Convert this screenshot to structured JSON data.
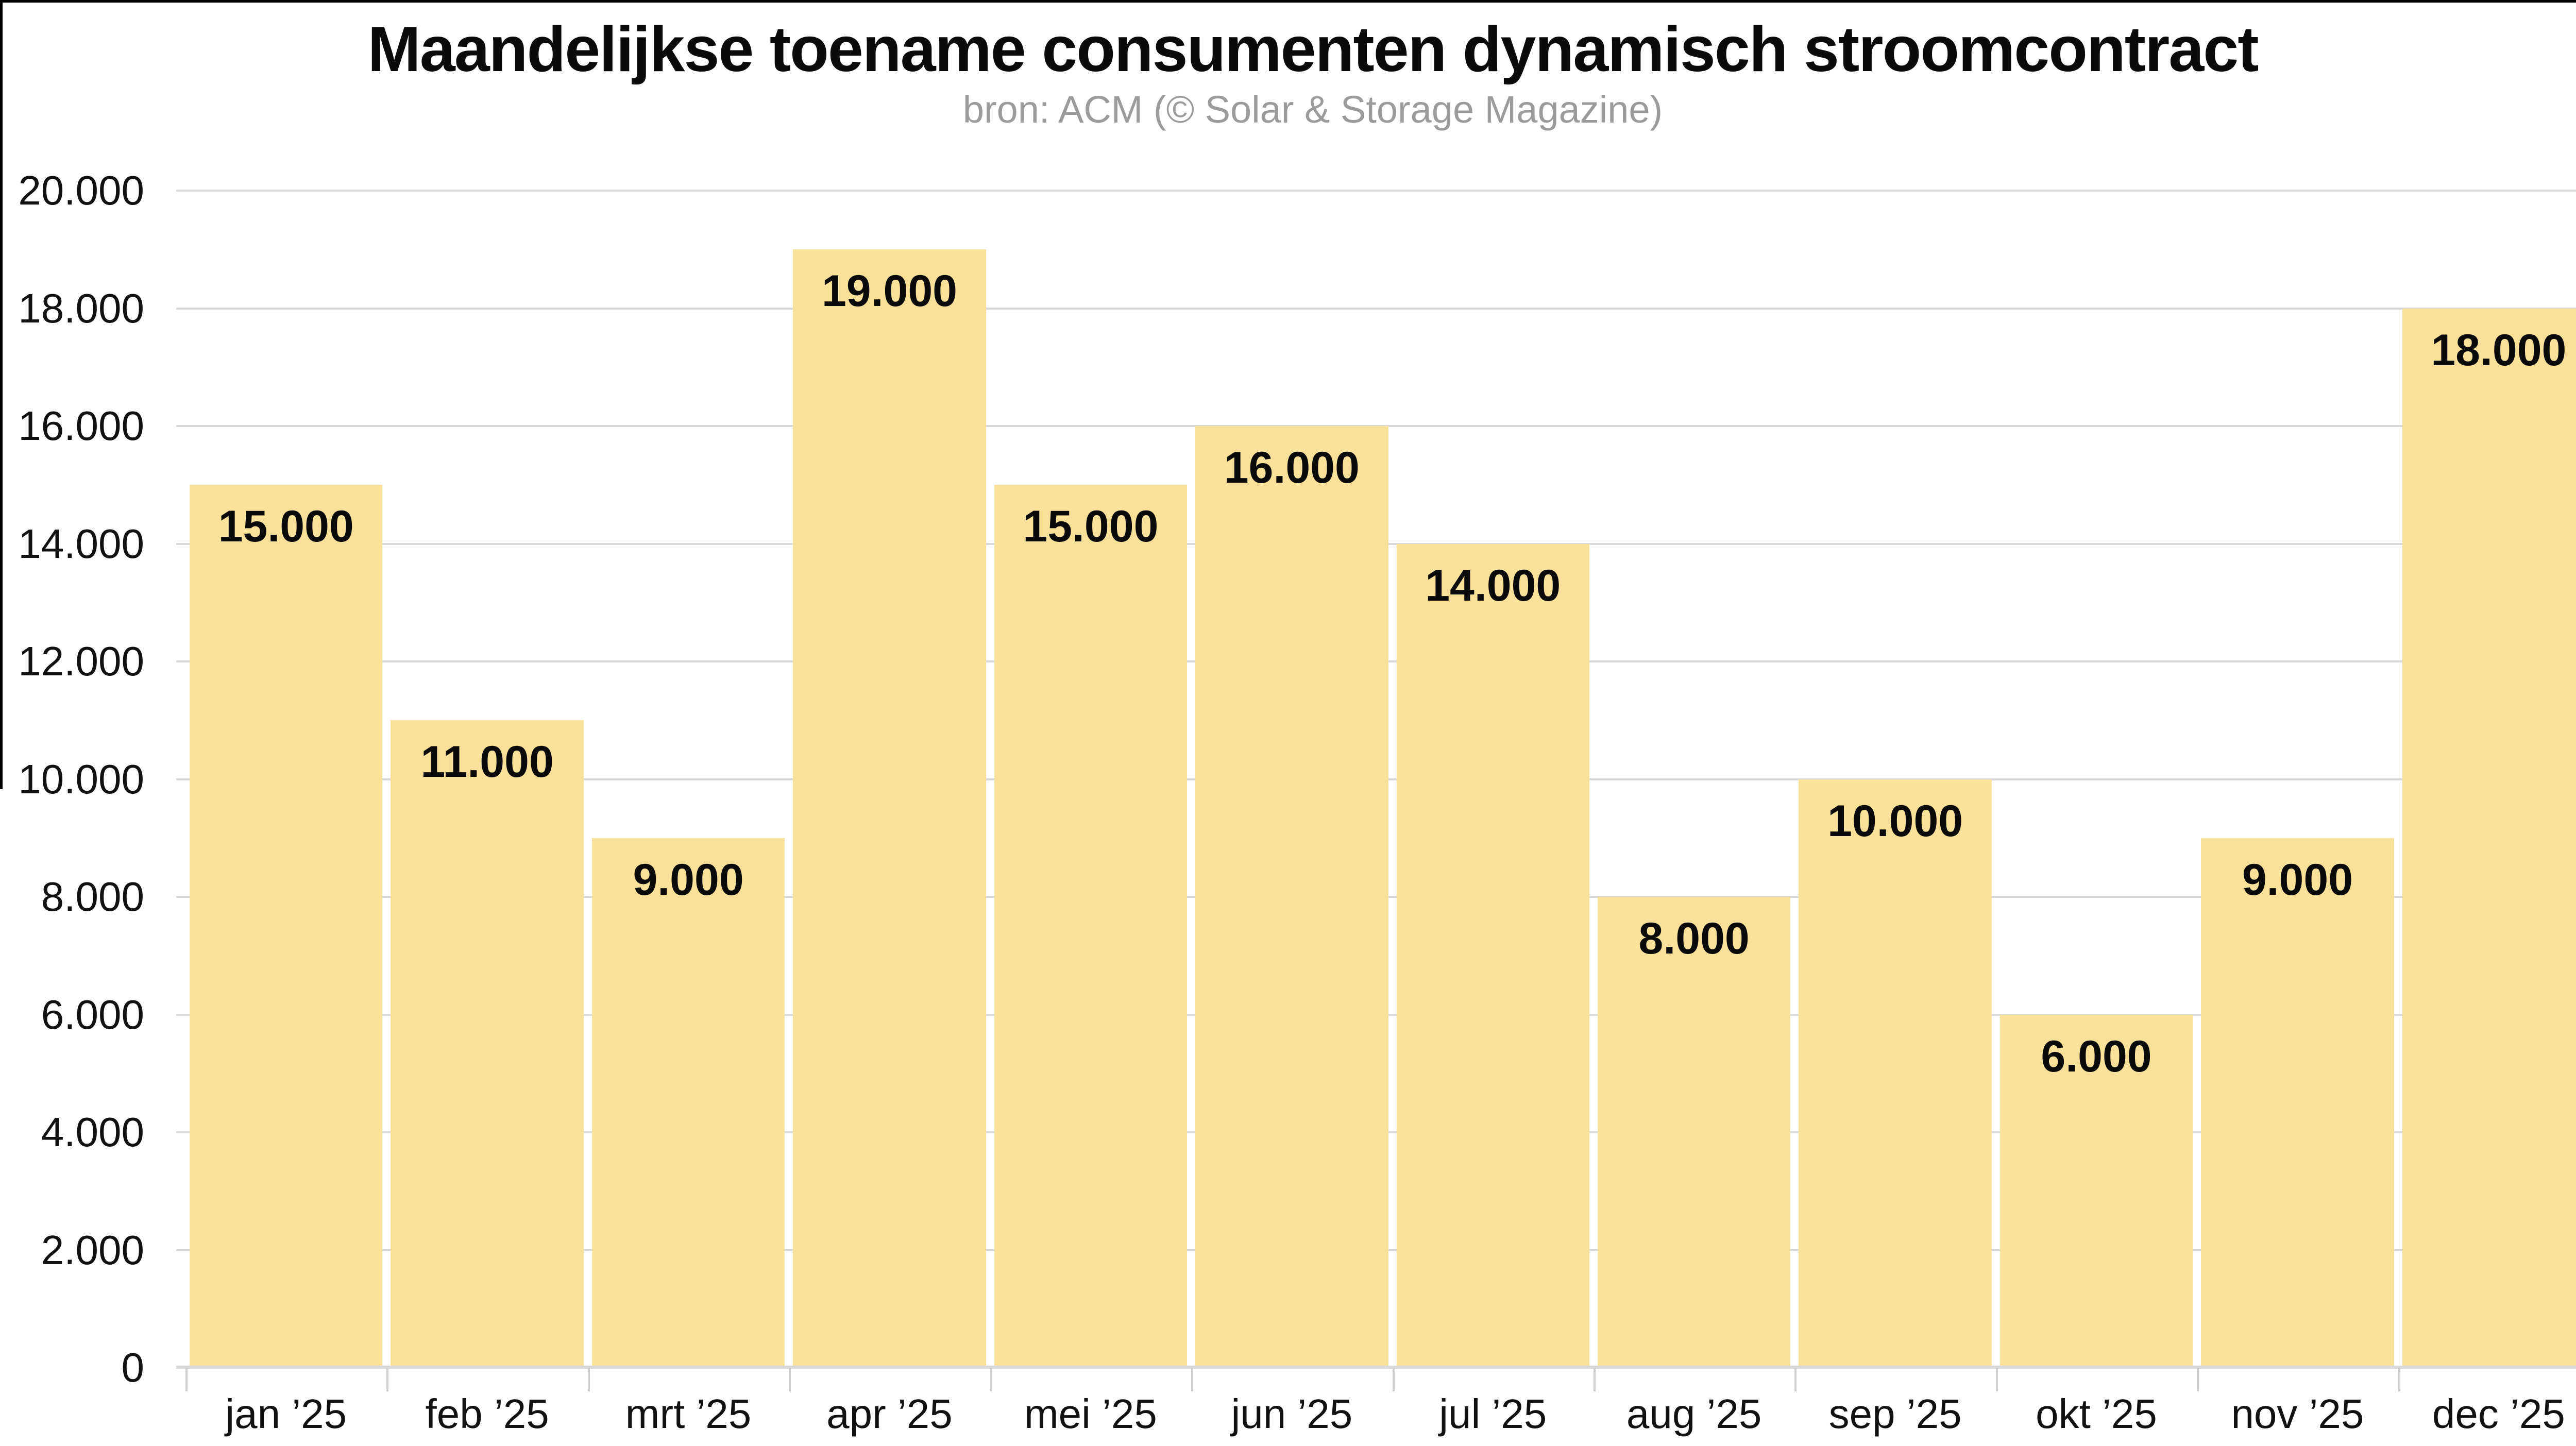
{
  "chart_data": {
    "type": "bar",
    "title": "Maandelijkse toename consumenten dynamisch stroomcontract",
    "subtitle": "bron: ACM (© Solar & Storage Magazine)",
    "categories": [
      "jan ’25",
      "feb ’25",
      "mrt ’25",
      "apr ’25",
      "mei ’25",
      "jun ’25",
      "jul ’25",
      "aug ’25",
      "sep ’25",
      "okt ’25",
      "nov ’25",
      "dec ’25"
    ],
    "values": [
      15000,
      11000,
      9000,
      19000,
      15000,
      16000,
      14000,
      8000,
      10000,
      6000,
      9000,
      18000
    ],
    "value_labels": [
      "15.000",
      "11.000",
      "9.000",
      "19.000",
      "15.000",
      "16.000",
      "14.000",
      "8.000",
      "10.000",
      "6.000",
      "9.000",
      "18.000"
    ],
    "xlabel": "",
    "ylabel": "",
    "ylim": [
      0,
      20000
    ],
    "y_ticks": [
      {
        "value": 0,
        "label": "0"
      },
      {
        "value": 2000,
        "label": "2.000"
      },
      {
        "value": 4000,
        "label": "4.000"
      },
      {
        "value": 6000,
        "label": "6.000"
      },
      {
        "value": 8000,
        "label": "8.000"
      },
      {
        "value": 10000,
        "label": "10.000"
      },
      {
        "value": 12000,
        "label": "12.000"
      },
      {
        "value": 14000,
        "label": "14.000"
      },
      {
        "value": 16000,
        "label": "16.000"
      },
      {
        "value": 18000,
        "label": "18.000"
      },
      {
        "value": 20000,
        "label": "20.000"
      }
    ],
    "grid": true,
    "legend": false,
    "colors": {
      "bar": "#F9E19A",
      "grid": "#D9D9D9",
      "tick": "#CFCFCF",
      "title": "#0B0B0B",
      "subtitle": "#9B9B9B",
      "axis_text": "#111111",
      "value_text": "#0A0A0A",
      "background": "#FFFFFF",
      "frame_border": "#000000"
    }
  }
}
